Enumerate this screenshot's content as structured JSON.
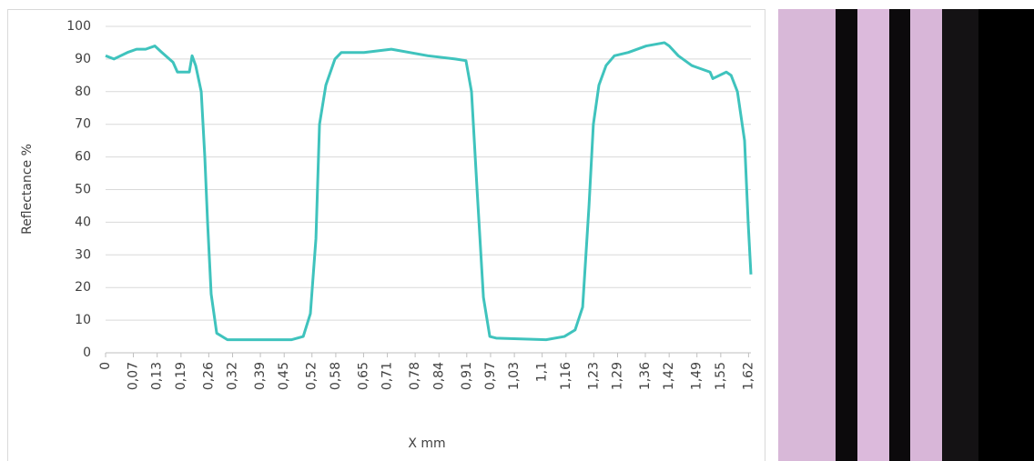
{
  "chart_data": {
    "type": "line",
    "x_label": "X mm",
    "y_label": "Reflectance %",
    "x": [
      0,
      0.021,
      0.055,
      0.078,
      0.101,
      0.124,
      0.142,
      0.17,
      0.181,
      0.211,
      0.218,
      0.227,
      0.241,
      0.25,
      0.257,
      0.266,
      0.28,
      0.307,
      0.399,
      0.468,
      0.498,
      0.516,
      0.53,
      0.539,
      0.555,
      0.578,
      0.594,
      0.651,
      0.72,
      0.812,
      0.881,
      0.908,
      0.922,
      0.936,
      0.952,
      0.968,
      0.984,
      1.11,
      1.156,
      1.183,
      1.202,
      1.218,
      1.229,
      1.243,
      1.261,
      1.282,
      1.317,
      1.362,
      1.408,
      1.42,
      1.443,
      1.477,
      1.523,
      1.53,
      1.564,
      1.576,
      1.592,
      1.61,
      1.619,
      1.626
    ],
    "values": [
      91,
      90,
      92,
      93,
      93,
      94,
      92,
      89,
      86,
      86,
      91,
      88,
      80,
      60,
      40,
      18,
      6,
      4,
      4,
      4,
      5,
      12,
      35,
      70,
      82,
      90,
      92,
      92,
      93,
      91,
      90,
      89.5,
      80,
      50,
      17,
      5,
      4.5,
      4,
      5,
      7,
      14,
      45,
      70,
      82,
      88,
      91,
      92,
      94,
      95,
      94,
      91,
      88,
      86,
      84,
      86,
      85,
      80,
      65,
      40,
      24
    ],
    "color": "#3fc3bd",
    "xlim": [
      0,
      1.626
    ],
    "xticks": [
      0,
      {
        "value": 0.07,
        "label": "0,07"
      },
      {
        "value": 0.13,
        "label": "0,13"
      },
      {
        "value": 0.19,
        "label": "0,19"
      },
      {
        "value": 0.26,
        "label": "0,26"
      },
      {
        "value": 0.32,
        "label": "0,32"
      },
      {
        "value": 0.39,
        "label": "0,39"
      },
      {
        "value": 0.45,
        "label": "0,45"
      },
      {
        "value": 0.52,
        "label": "0,52"
      },
      {
        "value": 0.58,
        "label": "0,58"
      },
      {
        "value": 0.65,
        "label": "0,65"
      },
      {
        "value": 0.71,
        "label": "0,71"
      },
      {
        "value": 0.78,
        "label": "0,78"
      },
      {
        "value": 0.84,
        "label": "0,84"
      },
      {
        "value": 0.91,
        "label": "0,91"
      },
      {
        "value": 0.97,
        "label": "0,97"
      },
      {
        "value": 1.03,
        "label": "1,03"
      },
      {
        "value": 1.1,
        "label": "1,1"
      },
      {
        "value": 1.16,
        "label": "1,16"
      },
      {
        "value": 1.23,
        "label": "1,23"
      },
      {
        "value": 1.29,
        "label": "1,29"
      },
      {
        "value": 1.36,
        "label": "1,36"
      },
      {
        "value": 1.42,
        "label": "1,42"
      },
      {
        "value": 1.49,
        "label": "1,49"
      },
      {
        "value": 1.55,
        "label": "1,55"
      },
      {
        "value": 1.62,
        "label": "1,62"
      }
    ],
    "ylim": [
      0,
      100
    ],
    "yticks": [
      0,
      10,
      20,
      30,
      40,
      50,
      60,
      70,
      80,
      90,
      100
    ],
    "grid": true
  }
}
